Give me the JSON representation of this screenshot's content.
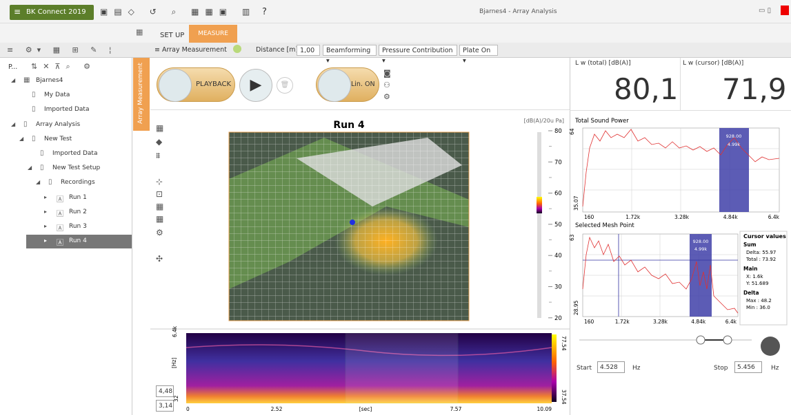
{
  "app": {
    "title": "BK Connect 2019",
    "window_title": "Bjarnes4 - Array Analysis",
    "help": "?"
  },
  "tabs": [
    "SET UP",
    "MEASURE"
  ],
  "toolbar": {
    "panel": "Array Measurement",
    "distance_label": "Distance [m]:",
    "distance": "1,00",
    "dropdowns": [
      "Beamforming",
      "Pressure Contribution",
      "Plate On"
    ]
  },
  "tree": {
    "header": "P...",
    "items": [
      {
        "label": "Bjarnes4",
        "level": 0
      },
      {
        "label": "My Data",
        "level": 1
      },
      {
        "label": "Imported Data",
        "level": 1
      },
      {
        "label": "Array Analysis",
        "level": 0
      },
      {
        "label": "New Test",
        "level": 1
      },
      {
        "label": "Imported Data",
        "level": 2
      },
      {
        "label": "New Test Setup",
        "level": 2
      },
      {
        "label": "Recordings",
        "level": 3
      },
      {
        "label": "Run 1",
        "level": 4
      },
      {
        "label": "Run 2",
        "level": 4
      },
      {
        "label": "Run 3",
        "level": 4
      },
      {
        "label": "Run 4",
        "level": 4
      }
    ]
  },
  "side_tab": "Array Measurement",
  "controls": {
    "playback": "PLAYBACK",
    "lin": "Lin. ON"
  },
  "readouts": [
    {
      "label": "L w (total) [dB(A)]",
      "value": "80,1"
    },
    {
      "label": "L w (cursor) [dB(A)]",
      "value": "71,9"
    }
  ],
  "map": {
    "title": "Run 4",
    "unit": "[dB(A)/20u Pa]",
    "scale_ticks": [
      "80",
      "70",
      "60",
      "50",
      "40",
      "30",
      "20"
    ]
  },
  "total_power": {
    "title": "Total Sound Power",
    "y_top": "64",
    "y_bottom": "35.07",
    "x_ticks": [
      "160",
      "1.72k",
      "3.28k",
      "4.84k",
      "6.4k"
    ],
    "cursor": [
      "928.00",
      "4.99k"
    ]
  },
  "mesh_point": {
    "title": "Selected Mesh Point",
    "y_top": "63",
    "y_bottom": "28.95",
    "x_ticks": [
      "160",
      "1.72k",
      "3.28k",
      "4.84k",
      "6.4k"
    ],
    "cursor": [
      "928.00",
      "4.99k"
    ]
  },
  "cursor_values": {
    "title": "Cursor values",
    "sections": [
      {
        "name": "Sum",
        "lines": [
          "Delta: 55.97",
          "Total : 73.92"
        ]
      },
      {
        "name": "Main",
        "lines": [
          "X: 1.6k",
          "Y: 51.689"
        ]
      },
      {
        "name": "Delta",
        "lines": [
          "Max : 48.2",
          "Min : 36.0"
        ]
      }
    ]
  },
  "spectrogram": {
    "y_label": "[Hz]",
    "y_top": "6.4k",
    "y_bottom": "32",
    "x_label": "[sec]",
    "x_ticks": [
      "0",
      "2.52",
      "7.57",
      "10.09"
    ],
    "scale_top": "77.54",
    "scale_bottom": "37.54",
    "inputs": [
      "4,48",
      "3,14"
    ]
  },
  "range": {
    "start_label": "Start",
    "start": "4.528",
    "stop_label": "Stop",
    "stop": "5.456",
    "unit": "Hz"
  }
}
